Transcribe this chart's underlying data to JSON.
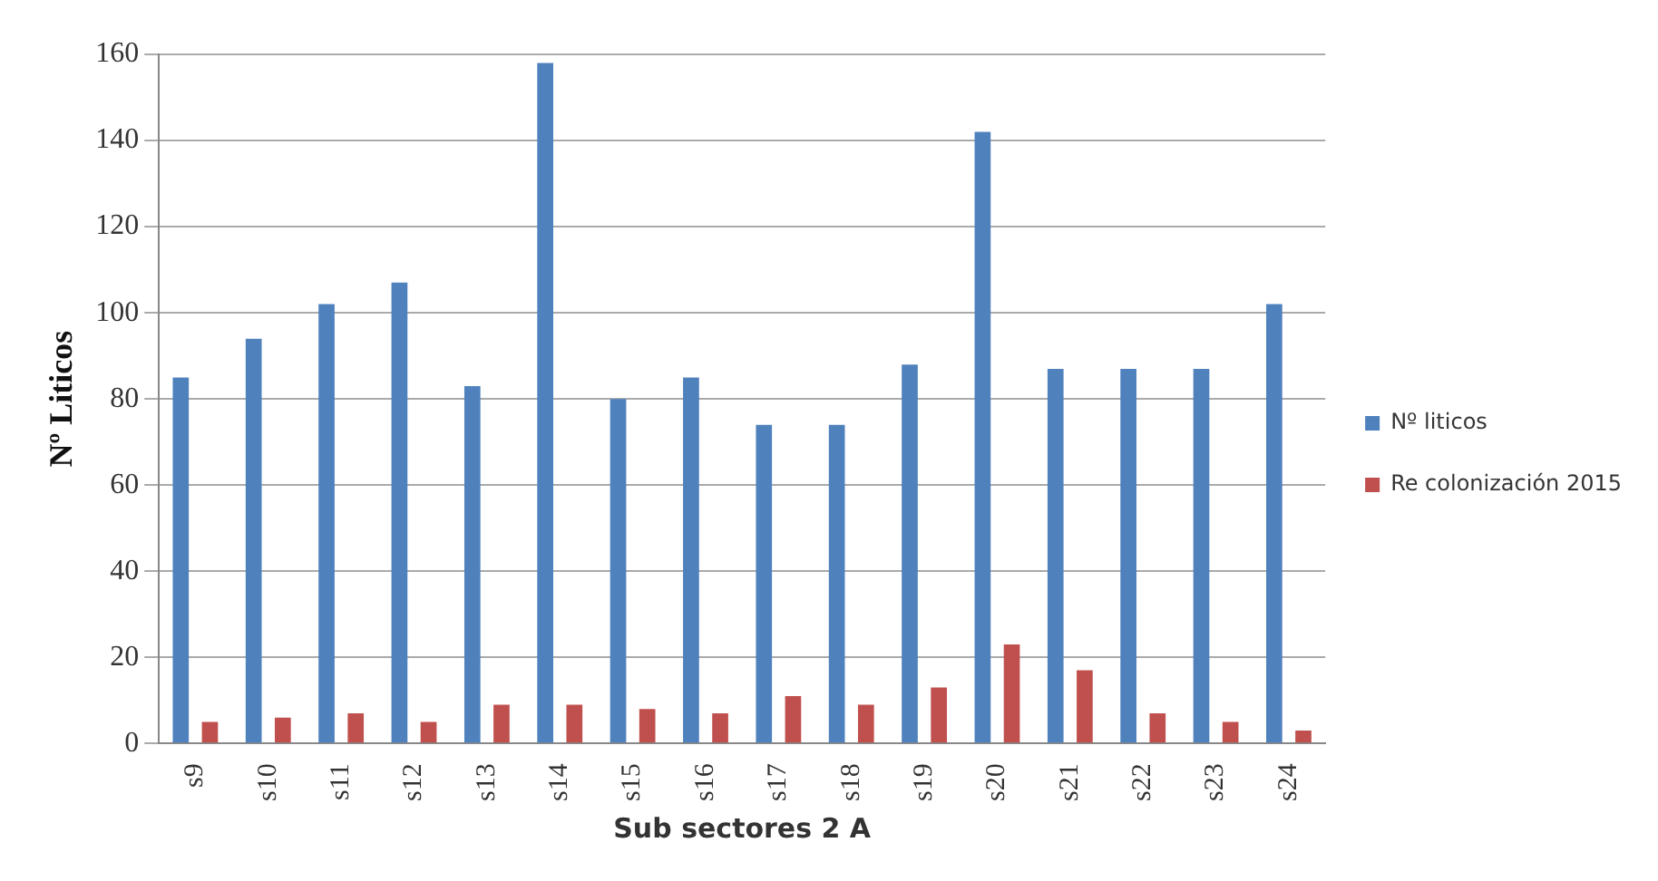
{
  "chart_data": {
    "type": "bar",
    "xlabel": "Sub sectores 2 A",
    "ylabel": "Nº Liticos",
    "categories": [
      "s9",
      "s10",
      "s11",
      "s12",
      "s13",
      "s14",
      "s15",
      "s16",
      "s17",
      "s18",
      "s19",
      "s20",
      "s21",
      "s22",
      "s23",
      "s24"
    ],
    "series": [
      {
        "name": "Nº liticos",
        "color": "#4f81bd",
        "values": [
          85,
          94,
          102,
          107,
          83,
          158,
          80,
          85,
          74,
          74,
          88,
          142,
          87,
          87,
          87,
          102
        ]
      },
      {
        "name": "Re colonización 2015",
        "color": "#c0504d",
        "values": [
          5,
          6,
          7,
          5,
          9,
          9,
          8,
          7,
          11,
          9,
          13,
          23,
          17,
          7,
          5,
          3
        ]
      }
    ],
    "ylim": [
      0,
      160
    ],
    "yticks": [
      0,
      20,
      40,
      60,
      80,
      100,
      120,
      140,
      160
    ],
    "grid": "y",
    "legend": "right"
  }
}
